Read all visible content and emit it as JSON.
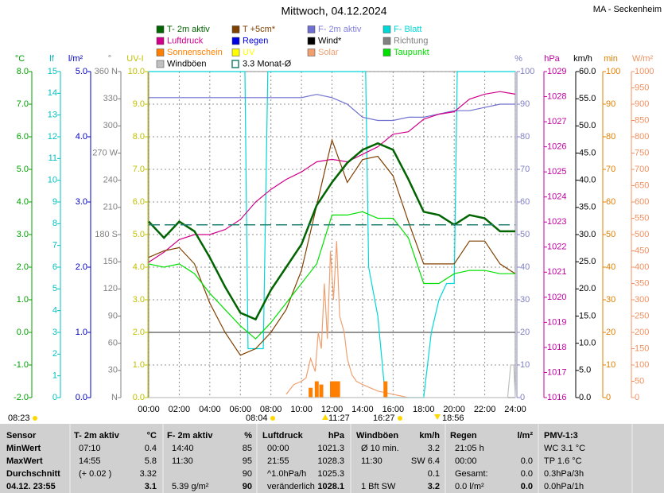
{
  "chart_data": {
    "type": "line",
    "title": "Mittwoch, 04.12.2024",
    "station": "MA - Seckenheim",
    "x": [
      0,
      1,
      2,
      3,
      4,
      5,
      6,
      7,
      8,
      9,
      10,
      11,
      12,
      13,
      14,
      15,
      16,
      17,
      18,
      19,
      20,
      21,
      22,
      23,
      24
    ],
    "xlim": [
      0,
      24
    ],
    "xticks": [
      {
        "value": 0,
        "label": "00:00"
      },
      {
        "value": 2,
        "label": "02:00"
      },
      {
        "value": 4,
        "label": "04:00"
      },
      {
        "value": 6,
        "label": "06:00"
      },
      {
        "value": 8,
        "label": "08:00"
      },
      {
        "value": 10,
        "label": "10:00"
      },
      {
        "value": 12,
        "label": "12:00"
      },
      {
        "value": 14,
        "label": "14:00"
      },
      {
        "value": 16,
        "label": "16:00"
      },
      {
        "value": 18,
        "label": "18:00"
      },
      {
        "value": 20,
        "label": "20:00"
      },
      {
        "value": 22,
        "label": "22:00"
      },
      {
        "value": 24,
        "label": "24:00"
      }
    ],
    "grid": true,
    "reference_line": 0,
    "axes": [
      {
        "name": "°C",
        "color": "#00a000",
        "ylim": [
          -2,
          8
        ],
        "yticks": [
          {
            "value": -2,
            "label": "-2.0"
          },
          {
            "value": -1,
            "label": "-1.0"
          },
          {
            "value": 0,
            "label": "0.0"
          },
          {
            "value": 1,
            "label": "1.0"
          },
          {
            "value": 2,
            "label": "2.0"
          },
          {
            "value": 3,
            "label": "3.0"
          },
          {
            "value": 4,
            "label": "4.0"
          },
          {
            "value": 5,
            "label": "5.0"
          },
          {
            "value": 6,
            "label": "6.0"
          },
          {
            "value": 7,
            "label": "7.0"
          },
          {
            "value": 8,
            "label": "8.0"
          }
        ]
      },
      {
        "name": "lf",
        "color": "#00c0c0",
        "ylim": [
          0,
          15
        ],
        "yticks": [
          0,
          1,
          2,
          3,
          4,
          5,
          6,
          7,
          8,
          9,
          10,
          11,
          12,
          13,
          14,
          15
        ]
      },
      {
        "name": "l/m²",
        "color": "#0000c0",
        "ylim": [
          0,
          5
        ],
        "yticks": [
          {
            "value": 0,
            "label": "0.0"
          },
          {
            "value": 1,
            "label": "1.0"
          },
          {
            "value": 2,
            "label": "2.0"
          },
          {
            "value": 3,
            "label": "3.0"
          },
          {
            "value": 4,
            "label": "4.0"
          },
          {
            "value": 5,
            "label": "5.0"
          }
        ]
      },
      {
        "name": "°",
        "color": "#808080",
        "ylim": [
          0,
          360
        ],
        "yticks": [
          {
            "value": 0,
            "label": "N"
          },
          30,
          60,
          90,
          120,
          150,
          {
            "value": 180,
            "label": "180 S"
          },
          210,
          240,
          {
            "value": 270,
            "label": "270 W"
          },
          300,
          330,
          {
            "value": 360,
            "label": "360 N"
          }
        ]
      },
      {
        "name": "UV-I",
        "color": "#c0c000",
        "ylim": [
          0,
          10
        ],
        "yticks": [
          {
            "value": 0,
            "label": "0.0"
          },
          {
            "value": 1,
            "label": "1.0"
          },
          {
            "value": 2,
            "label": "2.0"
          },
          {
            "value": 3,
            "label": "3.0"
          },
          {
            "value": 4,
            "label": "4.0"
          },
          {
            "value": 5,
            "label": "5.0"
          },
          {
            "value": 6,
            "label": "6.0"
          },
          {
            "value": 7,
            "label": "7.0"
          },
          {
            "value": 8,
            "label": "8.0"
          },
          {
            "value": 9,
            "label": "9.0"
          },
          {
            "value": 10,
            "label": "10.0"
          }
        ]
      },
      {
        "name": "%",
        "color": "#8080c0",
        "ylim": [
          0,
          100
        ],
        "yticks": [
          0,
          10,
          20,
          30,
          40,
          50,
          60,
          70,
          80,
          90,
          100
        ]
      },
      {
        "name": "hPa",
        "color": "#c000a0",
        "ylim": [
          1016,
          1029
        ],
        "yticks": [
          1016,
          1017,
          1018,
          1019,
          1020,
          1021,
          1022,
          1023,
          1024,
          1025,
          1026,
          1027,
          1028,
          1029
        ]
      },
      {
        "name": "km/h",
        "color": "#000000",
        "ylim": [
          0,
          60
        ],
        "yticks": [
          {
            "value": 0,
            "label": "0.0"
          },
          {
            "value": 5,
            "label": "5.0"
          },
          {
            "value": 10,
            "label": "10.0"
          },
          {
            "value": 15,
            "label": "15.0"
          },
          {
            "value": 20,
            "label": "20.0"
          },
          {
            "value": 25,
            "label": "25.0"
          },
          {
            "value": 30,
            "label": "30.0"
          },
          {
            "value": 35,
            "label": "35.0"
          },
          {
            "value": 40,
            "label": "40.0"
          },
          {
            "value": 45,
            "label": "45.0"
          },
          {
            "value": 50,
            "label": "50.0"
          },
          {
            "value": 55,
            "label": "55.0"
          },
          {
            "value": 60,
            "label": "60.0"
          }
        ]
      },
      {
        "name": "min",
        "color": "#e08000",
        "ylim": [
          0,
          100
        ],
        "yticks": [
          0,
          10,
          20,
          30,
          40,
          50,
          60,
          70,
          80,
          90,
          100
        ]
      },
      {
        "name": "W/m²",
        "color": "#f09060",
        "ylim": [
          0,
          1000
        ],
        "yticks": [
          0,
          50,
          100,
          150,
          200,
          250,
          300,
          350,
          400,
          450,
          500,
          550,
          600,
          650,
          700,
          750,
          800,
          850,
          900,
          950,
          1000
        ]
      }
    ],
    "series": [
      {
        "name": "F- Blatt",
        "color": "#00d8d8",
        "axis": 5,
        "x": [
          0,
          6.3,
          6.5,
          7.5,
          7.8,
          14.2,
          14.4,
          15.0,
          15.5,
          16.5,
          18,
          18.5,
          19,
          19.5,
          20,
          20.2,
          24
        ],
        "values": [
          100,
          100,
          15,
          15,
          100,
          100,
          40,
          25,
          0,
          0,
          0,
          20,
          30,
          35,
          35,
          100,
          100
        ]
      },
      {
        "name": "F- 2m aktiv",
        "color": "#7070d0",
        "axis": 5,
        "values": [
          92,
          92,
          92,
          92,
          92,
          92,
          92,
          92,
          92,
          92,
          92,
          93,
          92,
          90,
          86,
          85,
          85,
          86,
          86,
          87,
          88,
          88,
          89,
          90,
          90
        ]
      },
      {
        "name": "Luftdruck",
        "color": "#d0008a",
        "axis": 6,
        "values": [
          1021.4,
          1021.8,
          1022.3,
          1022.5,
          1022.5,
          1022.7,
          1023.1,
          1023.8,
          1024.3,
          1024.7,
          1025.0,
          1025.4,
          1025.5,
          1025.4,
          1025.7,
          1026.0,
          1026.5,
          1026.6,
          1027.1,
          1027.3,
          1027.4,
          1027.9,
          1028.1,
          1028.2,
          1028.1
        ]
      },
      {
        "name": "Solar",
        "color": "#f0a070",
        "axis": 9,
        "x": [
          9,
          9.5,
          10,
          10.3,
          10.6,
          10.9,
          11.1,
          11.3,
          11.5,
          11.7,
          11.9,
          12.1,
          12.3,
          12.5,
          12.8,
          13,
          13.3,
          13.6,
          14,
          14.5,
          15,
          16,
          17
        ],
        "values": [
          10,
          40,
          50,
          60,
          120,
          80,
          200,
          150,
          350,
          180,
          450,
          300,
          480,
          250,
          200,
          120,
          70,
          50,
          40,
          30,
          20,
          10,
          0
        ]
      },
      {
        "name": "Sonnenschein",
        "color": "#ff8000",
        "axis": 8,
        "style": "bars",
        "x": [
          10.6,
          11.0,
          11.3,
          12.0,
          12.2,
          12.4,
          15.5
        ],
        "values": [
          3,
          5,
          4,
          5,
          5,
          5,
          5
        ]
      },
      {
        "name": "Windböen",
        "color": "#c0c0c0",
        "axis": 7,
        "x": [
          0,
          23.5,
          23.7,
          23.9,
          24
        ],
        "values": [
          0,
          0,
          6,
          6,
          0
        ]
      },
      {
        "name": "T +5cm*",
        "color": "#804000",
        "axis": 0,
        "values": [
          2.3,
          2.5,
          2.6,
          2.1,
          0.9,
          0.0,
          -0.7,
          -0.5,
          0.0,
          0.7,
          1.9,
          3.9,
          5.9,
          4.6,
          5.3,
          5.4,
          4.8,
          3.4,
          2.1,
          2.1,
          2.1,
          2.8,
          2.8,
          2.1,
          1.8
        ]
      },
      {
        "name": "Taupunkt",
        "color": "#00e000",
        "axis": 0,
        "values": [
          2.1,
          2.0,
          2.1,
          1.8,
          1.2,
          0.7,
          0.2,
          -0.2,
          0.3,
          0.9,
          1.5,
          2.1,
          3.6,
          3.6,
          3.7,
          3.5,
          3.5,
          2.9,
          1.5,
          1.5,
          1.8,
          1.9,
          1.9,
          1.8,
          1.8
        ]
      },
      {
        "name": "T- 2m aktiv",
        "color": "#006400",
        "axis": 0,
        "values": [
          3.4,
          2.9,
          3.4,
          3.1,
          2.3,
          1.4,
          0.6,
          0.4,
          1.3,
          2.0,
          2.7,
          3.9,
          4.6,
          5.2,
          5.6,
          5.8,
          5.6,
          4.7,
          3.7,
          3.6,
          3.3,
          3.6,
          3.5,
          3.1,
          3.1
        ]
      },
      {
        "name": "3.3 Monat-Ø",
        "color": "#208070",
        "axis": 0,
        "style": "dashed",
        "value": 3.3
      },
      {
        "name": "Regen",
        "color": "#0000e0",
        "axis": 2
      },
      {
        "name": "Wind*",
        "color": "#000000",
        "axis": 7
      },
      {
        "name": "Richtung",
        "color": "#808080",
        "axis": 3
      },
      {
        "name": "UV",
        "color": "#ffff00",
        "axis": 4
      }
    ],
    "sun_markers": [
      "08:23",
      "08:04",
      "11:27",
      "16:27",
      "18:56"
    ]
  },
  "table": {
    "row_heads": [
      "Sensor",
      "MinWert",
      "MaxWert",
      "Durchschnitt",
      "04.12. 23:55"
    ],
    "columns": [
      {
        "title": "T- 2m aktiv",
        "unit": "°C",
        "cells": [
          [
            "07:10",
            "0.4"
          ],
          [
            "14:55",
            "5.8"
          ],
          [
            "(+ 0.02 )",
            "3.32"
          ],
          [
            null,
            "3.1"
          ]
        ]
      },
      {
        "title": "F- 2m aktiv",
        "unit": "%",
        "cells": [
          [
            "14:40",
            "85"
          ],
          [
            "11:30",
            "95"
          ],
          [
            null,
            "90"
          ],
          [
            "5.39 g/m²",
            "90"
          ]
        ]
      },
      {
        "title": "Luftdruck",
        "unit": "hPa",
        "cells": [
          [
            "00:00",
            "1021.3"
          ],
          [
            "21:55",
            "1028.3"
          ],
          [
            "^1.0hPa/h",
            "1025.3"
          ],
          [
            "veränderlich",
            "1028.1"
          ]
        ]
      },
      {
        "title": "Windböen",
        "unit": "km/h",
        "cells": [
          [
            "Ø 10 min.",
            "3.2"
          ],
          [
            "11:30",
            "SW 6.4"
          ],
          [
            null,
            "0.1"
          ],
          [
            "1 Bft SW",
            "3.2"
          ]
        ]
      },
      {
        "title": "Regen",
        "unit": "l/m²",
        "cells": [
          [
            "21:05 h",
            null
          ],
          [
            "00:00",
            "0.0"
          ],
          [
            "Gesamt:",
            "0.0"
          ],
          [
            "0.0 l/m²",
            "0.0"
          ]
        ]
      },
      {
        "title": "PMV-1:3",
        "cells": [
          [
            "WC 3.1 °C"
          ],
          [
            "TP 1.6 °C"
          ],
          [
            "0.3hPa/3h"
          ],
          [
            "0.0hPa/1h"
          ]
        ]
      }
    ]
  }
}
